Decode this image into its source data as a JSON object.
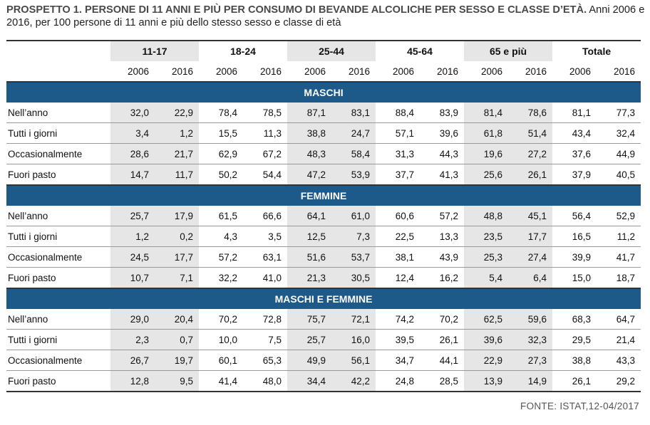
{
  "title": {
    "bold": "PROSPETTO 1. PERSONE DI 11 ANNI E PIÙ PER CONSUMO DI BEVANDE ALCOLICHE PER SESSO E CLASSE D’ETÀ.",
    "subtitle": "Anni 2006 e 2016, per 100 persone di 11 anni e più dello stesso sesso e classe di età"
  },
  "table": {
    "groups": [
      "11-17",
      "18-24",
      "25-44",
      "45-64",
      "65 e più",
      "Totale"
    ],
    "years": [
      "2006",
      "2016",
      "2006",
      "2016",
      "2006",
      "2016",
      "2006",
      "2016",
      "2006",
      "2016",
      "2006",
      "2016"
    ],
    "sections": [
      {
        "name": "MASCHI",
        "rows": [
          {
            "label": "Nell’anno",
            "values": [
              "32,0",
              "22,9",
              "78,4",
              "78,5",
              "87,1",
              "83,1",
              "88,4",
              "83,9",
              "81,4",
              "78,6",
              "81,1",
              "77,3"
            ]
          },
          {
            "label": "Tutti i giorni",
            "values": [
              "3,4",
              "1,2",
              "15,5",
              "11,3",
              "38,8",
              "24,7",
              "57,1",
              "39,6",
              "61,8",
              "51,4",
              "43,4",
              "32,4"
            ]
          },
          {
            "label": "Occasionalmente",
            "values": [
              "28,6",
              "21,7",
              "62,9",
              "67,2",
              "48,3",
              "58,4",
              "31,3",
              "44,3",
              "19,6",
              "27,2",
              "37,6",
              "44,9"
            ]
          },
          {
            "label": "Fuori pasto",
            "values": [
              "14,7",
              "11,7",
              "50,2",
              "54,4",
              "47,2",
              "53,9",
              "37,7",
              "41,3",
              "25,6",
              "26,1",
              "37,9",
              "40,5"
            ]
          }
        ]
      },
      {
        "name": "FEMMINE",
        "rows": [
          {
            "label": "Nell’anno",
            "values": [
              "25,7",
              "17,9",
              "61,5",
              "66,6",
              "64,1",
              "61,0",
              "60,6",
              "57,2",
              "48,8",
              "45,1",
              "56,4",
              "52,9"
            ]
          },
          {
            "label": "Tutti i giorni",
            "values": [
              "1,2",
              "0,2",
              "4,3",
              "3,5",
              "12,5",
              "7,3",
              "22,5",
              "13,3",
              "23,5",
              "17,7",
              "16,5",
              "11,2"
            ]
          },
          {
            "label": "Occasionalmente",
            "values": [
              "24,5",
              "17,7",
              "57,2",
              "63,1",
              "51,6",
              "53,7",
              "38,1",
              "43,9",
              "25,3",
              "27,4",
              "39,9",
              "41,7"
            ]
          },
          {
            "label": "Fuori pasto",
            "values": [
              "10,7",
              "7,1",
              "32,2",
              "41,0",
              "21,3",
              "30,5",
              "12,4",
              "16,2",
              "5,4",
              "6,4",
              "15,0",
              "18,7"
            ]
          }
        ]
      },
      {
        "name": "MASCHI E FEMMINE",
        "rows": [
          {
            "label": "Nell’anno",
            "values": [
              "29,0",
              "20,4",
              "70,2",
              "72,8",
              "75,7",
              "72,1",
              "74,2",
              "70,2",
              "62,5",
              "59,6",
              "68,3",
              "64,7"
            ]
          },
          {
            "label": "Tutti i giorni",
            "values": [
              "2,3",
              "0,7",
              "10,0",
              "7,5",
              "25,7",
              "16,0",
              "39,5",
              "26,1",
              "39,6",
              "32,3",
              "29,5",
              "21,4"
            ]
          },
          {
            "label": "Occasionalmente",
            "values": [
              "26,7",
              "19,7",
              "60,1",
              "65,3",
              "49,9",
              "56,1",
              "34,7",
              "44,1",
              "22,9",
              "27,3",
              "38,8",
              "43,3"
            ]
          },
          {
            "label": "Fuori pasto",
            "values": [
              "12,8",
              "9,5",
              "41,4",
              "48,0",
              "34,4",
              "42,2",
              "24,8",
              "28,5",
              "13,9",
              "14,9",
              "26,1",
              "29,2"
            ]
          }
        ]
      }
    ]
  },
  "source": "FONTE: ISTAT,12-04/2017",
  "colors": {
    "section_band": "#1d5a89",
    "shaded_column": "#e6e6e6",
    "title_gray": "#4a4a4a"
  }
}
